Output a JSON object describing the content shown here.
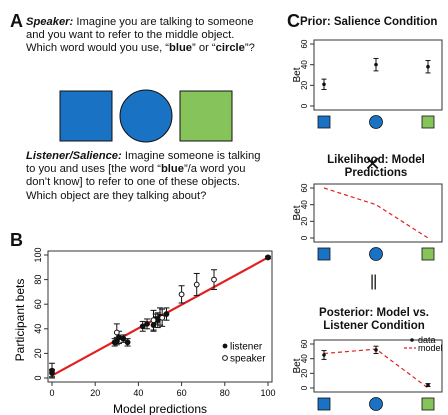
{
  "panel_a": {
    "letter": "A",
    "speaker_lead": "Speaker:",
    "speaker_text1": " Imagine you are talking to someone and you want to refer to the middle object. Which word would you use, “",
    "speaker_word_blue": "blue",
    "speaker_or": "” or “",
    "speaker_word_circle": "circle",
    "speaker_end": "”?",
    "listener_lead": "Listener/Salience:",
    "listener_text1": " Imagine someone is talking to you and uses [the word “",
    "listener_word_blue": "blue",
    "listener_text2": "”/a word you don’t know] to refer to one of these objects. Which object are they talking about?",
    "colors": {
      "blue": "#1a72c4",
      "green": "#86c35a"
    }
  },
  "panel_b": {
    "letter": "B",
    "legend": {
      "listener": "listener",
      "speaker": "speaker"
    },
    "chart_data": {
      "type": "scatter",
      "xlabel": "Model predictions",
      "ylabel": "Participant bets",
      "xlim": [
        0,
        100
      ],
      "ylim": [
        0,
        100
      ],
      "xticks": [
        "0",
        "20",
        "40",
        "60",
        "80",
        "100"
      ],
      "yticks": [
        "0",
        "20",
        "40",
        "60",
        "80",
        "100"
      ],
      "fit_line": {
        "x": [
          0,
          100
        ],
        "y": [
          2,
          98
        ],
        "color": "#e32020"
      },
      "series": [
        {
          "name": "listener",
          "marker": "filled",
          "points": [
            {
              "x": 0,
              "y": 6,
              "err": 6
            },
            {
              "x": 0,
              "y": 4,
              "err": 3
            },
            {
              "x": 29,
              "y": 29,
              "err": 3
            },
            {
              "x": 30,
              "y": 30,
              "err": 3
            },
            {
              "x": 31,
              "y": 33,
              "err": 5
            },
            {
              "x": 33,
              "y": 32,
              "err": 3
            },
            {
              "x": 35,
              "y": 29,
              "err": 3
            },
            {
              "x": 42,
              "y": 42,
              "err": 4
            },
            {
              "x": 44,
              "y": 44,
              "err": 4
            },
            {
              "x": 47,
              "y": 43,
              "err": 5
            },
            {
              "x": 48,
              "y": 48,
              "err": 4
            },
            {
              "x": 49,
              "y": 47,
              "err": 6
            },
            {
              "x": 50,
              "y": 50,
              "err": 7
            },
            {
              "x": 53,
              "y": 52,
              "err": 5
            },
            {
              "x": 100,
              "y": 98,
              "err": 1
            }
          ]
        },
        {
          "name": "speaker",
          "marker": "open",
          "points": [
            {
              "x": 30,
              "y": 37,
              "err": 7
            },
            {
              "x": 47,
              "y": 47,
              "err": 8
            },
            {
              "x": 51,
              "y": 49,
              "err": 7
            },
            {
              "x": 60,
              "y": 68,
              "err": 7
            },
            {
              "x": 67,
              "y": 76,
              "err": 9
            },
            {
              "x": 75,
              "y": 80,
              "err": 8
            }
          ]
        }
      ]
    }
  },
  "panel_c": {
    "letter": "C",
    "prior_title": "Prior: Salience Condition",
    "likelihood_title": "Likelihood: Model Predictions",
    "posterior_title": "Posterior: Model vs. Listener Condition",
    "times_symbol": "×",
    "equals_symbol": "||",
    "ylabel": "Bet",
    "legend": {
      "data": "data",
      "model": "model"
    },
    "chart_data": [
      {
        "type": "scatter",
        "title": "Prior: Salience Condition",
        "ylabel": "Bet",
        "ylim": [
          0,
          60
        ],
        "categories": [
          "blue square",
          "blue circle",
          "green square"
        ],
        "values": [
          21,
          40,
          38
        ],
        "errors": [
          5,
          6,
          6
        ]
      },
      {
        "type": "line",
        "title": "Likelihood: Model Predictions",
        "ylabel": "Bet",
        "ylim": [
          0,
          60
        ],
        "categories": [
          "blue square",
          "blue circle",
          "green square"
        ],
        "values": [
          60,
          40,
          0
        ]
      },
      {
        "type": "scatter",
        "title": "Posterior: Model vs. Listener Condition",
        "ylabel": "Bet",
        "ylim": [
          0,
          60
        ],
        "categories": [
          "blue square",
          "blue circle",
          "green square"
        ],
        "series": [
          {
            "name": "data",
            "values": [
              45,
              52,
              4
            ],
            "errors": [
              6,
              5,
              2
            ]
          },
          {
            "name": "model",
            "values": [
              47,
              53,
              0
            ]
          }
        ]
      }
    ]
  }
}
